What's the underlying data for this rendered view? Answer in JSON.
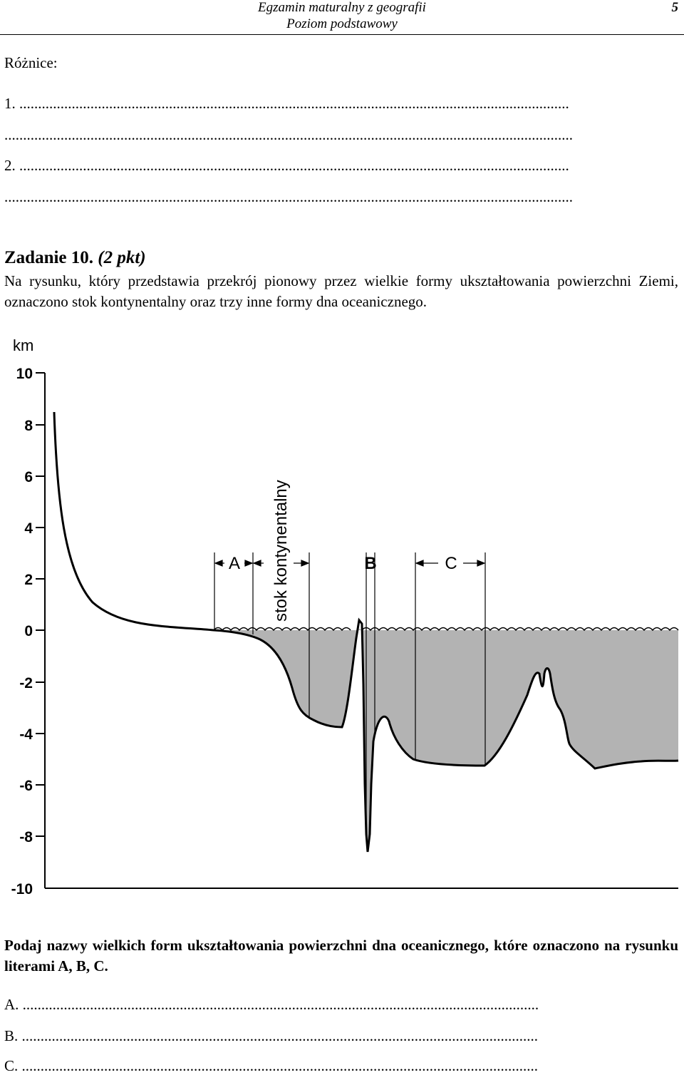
{
  "header": {
    "title": "Egzamin maturalny z geografii",
    "subtitle": "Poziom podstawowy",
    "page_number": "5"
  },
  "differences": {
    "label": "Różnice:",
    "line1": "1. ...................................................................................................................................................",
    "line1b": "........................................................................................................................................................",
    "line2": "2. ...................................................................................................................................................",
    "line2b": "........................................................................................................................................................"
  },
  "task": {
    "title": "Zadanie 10.",
    "points": "(2 pkt)",
    "intro": "Na rysunku, który przedstawia przekrój pionowy przez wielkie formy ukształtowania powierzchni Ziemi, oznaczono stok kontynentalny oraz trzy inne formy dna oceanicznego.",
    "question": "Podaj nazwy wielkich form ukształtowania powierzchni dna oceanicznego, które oznaczono na rysunku literami A, B, C."
  },
  "diagram": {
    "unit": "km",
    "y_ticks": [
      "10",
      "8",
      "6",
      "4",
      "2",
      "0",
      "-2",
      "-4",
      "-6",
      "-8",
      "-10"
    ],
    "label_a": "A",
    "label_b": "B",
    "label_c": "C",
    "slope_label": "stok kontynentalny",
    "ocean_color": "#b3b3b3"
  },
  "answers": {
    "a": "A. ..........................................................................................................................................",
    "b": "B. ..........................................................................................................................................",
    "c": "C. .........................................................................................................................................."
  }
}
